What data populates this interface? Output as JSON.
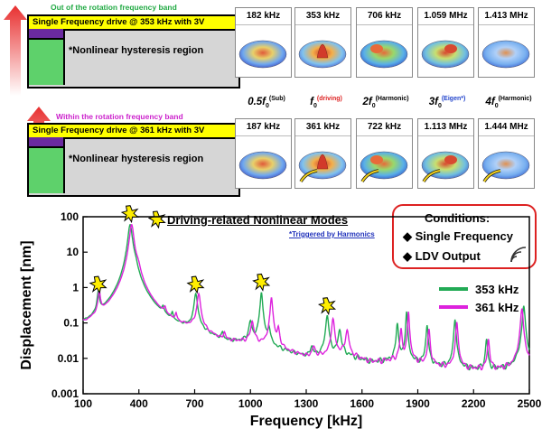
{
  "panels": [
    {
      "band_label": "Out of the rotation frequency band",
      "band_color": "#22aa44",
      "title": "Single Frequency drive @ 353 kHz with 3V",
      "region_label": "*Nonlinear hysteresis region"
    },
    {
      "band_label": "Within the rotation frequency band",
      "band_color": "#cc22cc",
      "title": "Single Frequency drive @ 361 kHz with 3V",
      "region_label": "*Nonlinear hysteresis region"
    }
  ],
  "mode_row1": [
    "182 kHz",
    "353 kHz",
    "706 kHz",
    "1.059 MHz",
    "1.413 MHz"
  ],
  "mode_row2": [
    "187 kHz",
    "361 kHz",
    "722 kHz",
    "1.113 MHz",
    "1.444 MHz"
  ],
  "harmonic_labels": [
    {
      "base": "0.5f",
      "sub": "0",
      "sup": "(Sub)",
      "sup_color": "#000000"
    },
    {
      "base": "f",
      "sub": "0",
      "sup": "(driving)",
      "sup_color": "#dd2222"
    },
    {
      "base": "2f",
      "sub": "0",
      "sup": "(Harmonic)",
      "sup_color": "#000000"
    },
    {
      "base": "3f",
      "sub": "0",
      "sup": "(Eigen*)",
      "sup_color": "#2244cc"
    },
    {
      "base": "4f",
      "sub": "0",
      "sup": "(Harmonic)",
      "sup_color": "#000000"
    }
  ],
  "legend_title": "Driving-related Nonlinear Modes",
  "legend_note": "*Triggered by Harmonics",
  "conditions": {
    "title": "Conditions:",
    "items": [
      "Single Frequency",
      "LDV Output"
    ]
  },
  "colors": {
    "s353": "#22aa55",
    "s361": "#dd22dd",
    "accent_red": "#dd2222",
    "purple": "#6a2aa0",
    "yellow": "#ffff00"
  },
  "chart_data": {
    "type": "line",
    "xlabel": "Frequency [kHz]",
    "ylabel": "Displacement [nm]",
    "xlim": [
      100,
      2500
    ],
    "ylim": [
      0.001,
      100
    ],
    "yscale": "log",
    "xticks": [
      100,
      400,
      700,
      1000,
      1300,
      1600,
      1900,
      2200,
      2500
    ],
    "yticks": [
      0.001,
      0.01,
      0.1,
      1,
      10,
      100
    ],
    "ytick_labels": [
      "0.001",
      "0.01",
      "0.1",
      "1",
      "10",
      "100"
    ],
    "baseline": [
      [
        100,
        0.02
      ],
      [
        250,
        0.012
      ],
      [
        400,
        0.04
      ],
      [
        500,
        0.01
      ],
      [
        600,
        0.012
      ],
      [
        700,
        0.03
      ],
      [
        850,
        0.008
      ],
      [
        1000,
        0.015
      ],
      [
        1100,
        0.01
      ],
      [
        1200,
        0.006
      ],
      [
        1300,
        0.004
      ],
      [
        1500,
        0.008
      ],
      [
        1650,
        0.004
      ],
      [
        1800,
        0.006
      ],
      [
        1950,
        0.004
      ],
      [
        2100,
        0.003
      ],
      [
        2300,
        0.003
      ],
      [
        2500,
        0.004
      ]
    ],
    "series": [
      {
        "name": "353 kHz",
        "peaks": [
          [
            182,
            0.6,
            6
          ],
          [
            353,
            60,
            10
          ],
          [
            380,
            2,
            12
          ],
          [
            530,
            0.1,
            6
          ],
          [
            580,
            0.07,
            5
          ],
          [
            706,
            0.6,
            8
          ],
          [
            850,
            0.02,
            6
          ],
          [
            1000,
            0.08,
            8
          ],
          [
            1059,
            0.7,
            6
          ],
          [
            1100,
            0.05,
            6
          ],
          [
            1330,
            0.01,
            8
          ],
          [
            1413,
            0.15,
            7
          ],
          [
            1480,
            0.05,
            8
          ],
          [
            1790,
            0.09,
            5
          ],
          [
            1840,
            0.2,
            4
          ],
          [
            1950,
            0.08,
            5
          ],
          [
            2100,
            0.12,
            5
          ],
          [
            2270,
            0.03,
            5
          ],
          [
            2470,
            0.3,
            6
          ]
        ]
      },
      {
        "name": "361 kHz",
        "peaks": [
          [
            187,
            0.6,
            6
          ],
          [
            361,
            60,
            10
          ],
          [
            395,
            2,
            12
          ],
          [
            540,
            0.09,
            6
          ],
          [
            600,
            0.07,
            5
          ],
          [
            722,
            0.6,
            8
          ],
          [
            860,
            0.02,
            6
          ],
          [
            1010,
            0.08,
            8
          ],
          [
            1113,
            0.5,
            6
          ],
          [
            1150,
            0.05,
            6
          ],
          [
            1340,
            0.01,
            8
          ],
          [
            1444,
            0.12,
            7
          ],
          [
            1520,
            0.05,
            8
          ],
          [
            1810,
            0.06,
            5
          ],
          [
            1850,
            0.2,
            4
          ],
          [
            1960,
            0.06,
            5
          ],
          [
            2110,
            0.1,
            5
          ],
          [
            2280,
            0.03,
            5
          ],
          [
            2460,
            0.25,
            6
          ]
        ]
      }
    ],
    "starburst_annotations_x": [
      182,
      353,
      706,
      1059,
      1413
    ]
  }
}
